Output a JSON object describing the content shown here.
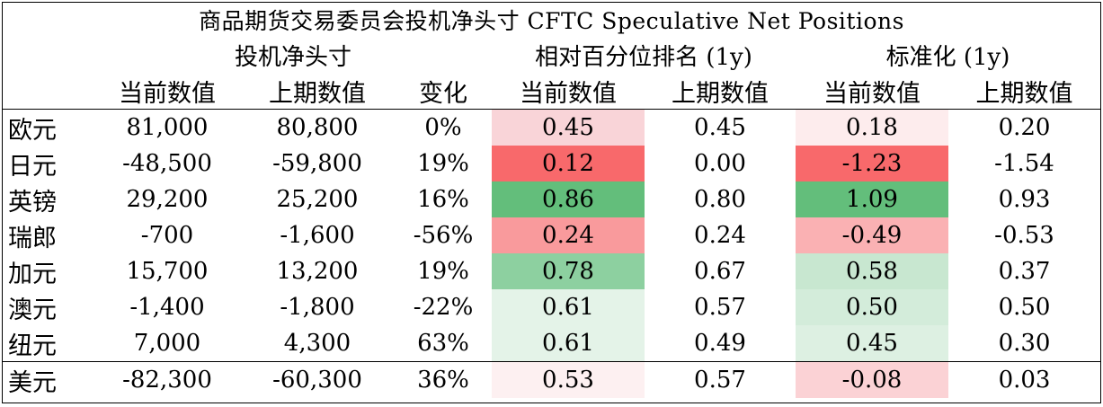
{
  "title": "商品期货交易委员会投机净头寸 CFTC Speculative Net Positions",
  "groups": {
    "net": "投机净头寸",
    "pct": "相对百分位排名 (1y)",
    "std": "标准化 (1y)"
  },
  "columns": {
    "cur": "当前数值",
    "prev": "上期数值",
    "chg": "变化",
    "pct_cur": "当前数值",
    "pct_prev": "上期数值",
    "std_cur": "当前数值",
    "std_prev": "上期数值"
  },
  "rows": [
    {
      "name": "欧元",
      "cur": "81,000",
      "prev": "80,800",
      "chg": "0%",
      "pct_cur": "0.45",
      "pct_prev": "0.45",
      "std_cur": "0.18",
      "std_prev": "0.20",
      "pct_color": "#f9d4d8",
      "std_color": "#fdeced"
    },
    {
      "name": "日元",
      "cur": "-48,500",
      "prev": "-59,800",
      "chg": "19%",
      "pct_cur": "0.12",
      "pct_prev": "0.00",
      "std_cur": "-1.23",
      "std_prev": "-1.54",
      "pct_color": "#f8696b",
      "std_color": "#f8696b"
    },
    {
      "name": "英镑",
      "cur": "29,200",
      "prev": "25,200",
      "chg": "16%",
      "pct_cur": "0.86",
      "pct_prev": "0.80",
      "std_cur": "1.09",
      "std_prev": "0.93",
      "pct_color": "#63be7b",
      "std_color": "#63be7b"
    },
    {
      "name": "瑞郎",
      "cur": "-700",
      "prev": "-1,600",
      "chg": "-56%",
      "pct_cur": "0.24",
      "pct_prev": "0.24",
      "std_cur": "-0.49",
      "std_prev": "-0.53",
      "pct_color": "#f99a9c",
      "std_color": "#fab1b3"
    },
    {
      "name": "加元",
      "cur": "15,700",
      "prev": "13,200",
      "chg": "19%",
      "pct_cur": "0.78",
      "pct_prev": "0.67",
      "std_cur": "0.58",
      "std_prev": "0.37",
      "pct_color": "#8dd0a0",
      "std_color": "#c8e7d0"
    },
    {
      "name": "澳元",
      "cur": "-1,400",
      "prev": "-1,800",
      "chg": "-22%",
      "pct_cur": "0.61",
      "pct_prev": "0.57",
      "std_cur": "0.50",
      "std_prev": "0.50",
      "pct_color": "#e4f3e8",
      "std_color": "#d3ecda"
    },
    {
      "name": "纽元",
      "cur": "7,000",
      "prev": "4,300",
      "chg": "63%",
      "pct_cur": "0.61",
      "pct_prev": "0.49",
      "std_cur": "0.45",
      "std_prev": "0.30",
      "pct_color": "#e4f3e8",
      "std_color": "#ddf0e2"
    }
  ],
  "usd": {
    "name": "美元",
    "cur": "-82,300",
    "prev": "-60,300",
    "chg": "36%",
    "pct_cur": "0.53",
    "pct_prev": "0.57",
    "std_cur": "-0.08",
    "std_prev": "0.03",
    "pct_color": "#fdf0f1",
    "std_color": "#fbd2d5"
  }
}
